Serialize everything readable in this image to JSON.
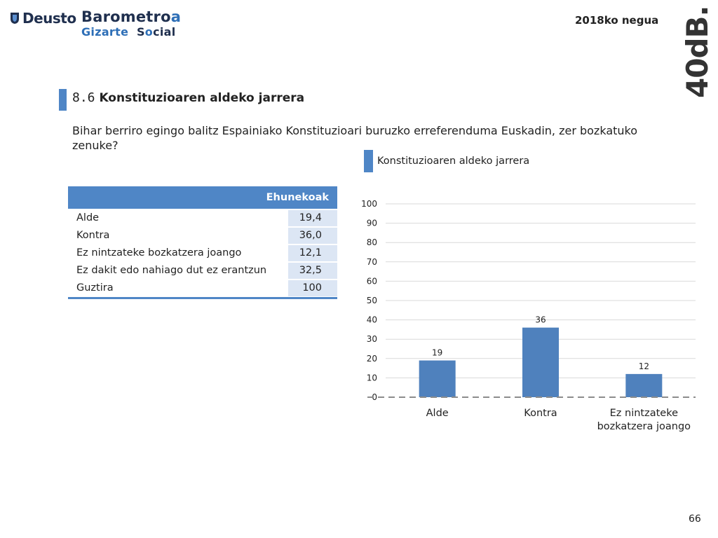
{
  "header": {
    "deusto": "Deusto",
    "barometro_main": "Barometro",
    "barometro_accent": "a",
    "gizarte": "Gizarte",
    "social_s": "S",
    "social_o": "o",
    "social_rest": "cial",
    "season": "2018ko negua",
    "brand": "40dB."
  },
  "section": {
    "number": "8.6",
    "title": "Konstituzioaren aldeko jarrera",
    "question": "Bihar berriro egingo balitz Espainiako Konstituzioari buruzko erreferenduma Euskadin, zer bozkatuko zenuke?"
  },
  "table": {
    "header": "Ehunekoak",
    "rows": [
      {
        "label": "Alde",
        "value": "19,4"
      },
      {
        "label": "Kontra",
        "value": "36,0"
      },
      {
        "label": "Ez nintzateke bozkatzera joango",
        "value": "12,1"
      },
      {
        "label": "Ez dakit edo nahiago dut ez erantzun",
        "value": "32,5"
      },
      {
        "label": "Guztira",
        "value": "100"
      }
    ]
  },
  "chart_data": {
    "type": "bar",
    "title": "Konstituzioaren aldeko jarrera",
    "categories": [
      "Alde",
      "Kontra",
      "Ez nintzateke bozkatzera joango"
    ],
    "category_lines": [
      [
        "Alde"
      ],
      [
        "Kontra"
      ],
      [
        "Ez nintzateke",
        "bozkatzera joango"
      ]
    ],
    "values": [
      19,
      36,
      12
    ],
    "yticks": [
      0,
      10,
      20,
      30,
      40,
      50,
      60,
      70,
      80,
      90,
      100
    ],
    "ylim": [
      0,
      100
    ],
    "grid": true,
    "legend": "none",
    "bar_color": "#4f81bd"
  },
  "page_number": "66",
  "colors": {
    "accent": "#4f86c6",
    "table_value_bg": "#dce6f4",
    "bar": "#4f81bd",
    "brand_dark": "#1f2f4e"
  }
}
